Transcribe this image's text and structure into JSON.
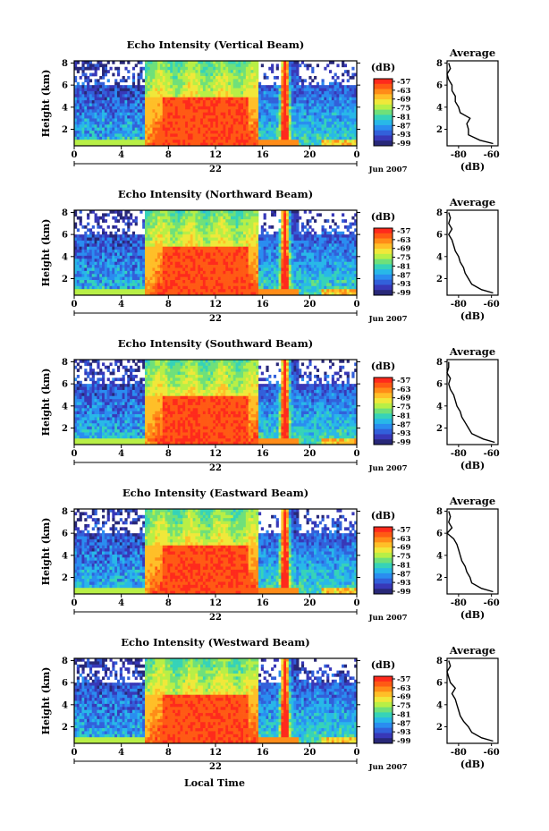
{
  "figure": {
    "xlabel": "Local Time",
    "date_label": "Jun 2007",
    "day_label": "22",
    "colorbar_unit": "(dB)",
    "avg_title": "Average",
    "avg_xlabel": "(dB)",
    "ylabel": "Height (km)"
  },
  "colorbar": {
    "ticks": [
      "-57",
      "-63",
      "-69",
      "-75",
      "-81",
      "-87",
      "-93",
      "-99"
    ],
    "colors": [
      "#ff2a1c",
      "#ff5a14",
      "#ff8c18",
      "#ffbf28",
      "#f0e83a",
      "#b8ef46",
      "#6fe07a",
      "#36d3b8",
      "#28b8e8",
      "#2a8df0",
      "#3260da",
      "#3838b8",
      "#282878"
    ]
  },
  "chart_data": [
    {
      "type": "heatmap",
      "title": "Echo Intensity (Vertical Beam)",
      "xlabel": "Local Time",
      "ylabel": "Height (km)",
      "x_ticks": [
        "0",
        "4",
        "8",
        "12",
        "16",
        "20",
        "0"
      ],
      "xlim": [
        0,
        24
      ],
      "y_ticks": [
        "2",
        "4",
        "6",
        "8"
      ],
      "ylim": [
        0.5,
        8.2
      ],
      "colorbar_ticks": [
        -57,
        -63,
        -69,
        -75,
        -81,
        -87,
        -93,
        -99
      ],
      "average": {
        "title": "Average",
        "xlabel": "(dB)",
        "x_ticks": [
          "-80",
          "-60"
        ],
        "xlim": [
          -87,
          -56
        ],
        "height": [
          0.7,
          1.0,
          1.5,
          2.0,
          2.5,
          3.0,
          3.5,
          4.0,
          4.5,
          5.0,
          5.5,
          6.0,
          6.5,
          7.0,
          7.5,
          8.0
        ],
        "value": [
          -59,
          -67,
          -74,
          -74,
          -75,
          -73,
          -79,
          -80,
          -82,
          -82,
          -84,
          -84,
          -86,
          -87,
          -85,
          -86
        ]
      }
    },
    {
      "type": "heatmap",
      "title": "Echo Intensity (Northward Beam)",
      "xlabel": "Local Time",
      "ylabel": "Height (km)",
      "x_ticks": [
        "0",
        "4",
        "8",
        "12",
        "16",
        "20",
        "0"
      ],
      "xlim": [
        0,
        24
      ],
      "y_ticks": [
        "2",
        "4",
        "6",
        "8"
      ],
      "ylim": [
        0.5,
        8.2
      ],
      "colorbar_ticks": [
        -57,
        -63,
        -69,
        -75,
        -81,
        -87,
        -93,
        -99
      ],
      "average": {
        "title": "Average",
        "xlabel": "(dB)",
        "x_ticks": [
          "-80",
          "-60"
        ],
        "xlim": [
          -87,
          -56
        ],
        "height": [
          0.7,
          1.0,
          1.5,
          2.0,
          2.5,
          3.0,
          3.5,
          4.0,
          4.5,
          5.0,
          5.5,
          6.0,
          6.5,
          7.0,
          7.5,
          8.0
        ],
        "value": [
          -59,
          -66,
          -72,
          -74,
          -76,
          -77,
          -79,
          -80,
          -82,
          -83,
          -84,
          -86,
          -84,
          -86,
          -85,
          -86
        ]
      }
    },
    {
      "type": "heatmap",
      "title": "Echo Intensity (Southward Beam)",
      "xlabel": "Local Time",
      "ylabel": "Height (km)",
      "x_ticks": [
        "0",
        "4",
        "8",
        "12",
        "16",
        "20",
        "0"
      ],
      "xlim": [
        0,
        24
      ],
      "y_ticks": [
        "2",
        "4",
        "6",
        "8"
      ],
      "ylim": [
        0.5,
        8.2
      ],
      "colorbar_ticks": [
        -57,
        -63,
        -69,
        -75,
        -81,
        -87,
        -93,
        -99
      ],
      "average": {
        "title": "Average",
        "xlabel": "(dB)",
        "x_ticks": [
          "-80",
          "-60"
        ],
        "xlim": [
          -87,
          -56
        ],
        "height": [
          0.7,
          1.0,
          1.5,
          2.0,
          2.5,
          3.0,
          3.5,
          4.0,
          4.5,
          5.0,
          5.5,
          6.0,
          6.5,
          7.0,
          7.5,
          8.0
        ],
        "value": [
          -58,
          -65,
          -72,
          -74,
          -76,
          -78,
          -79,
          -81,
          -82,
          -83,
          -85,
          -86,
          -85,
          -87,
          -86,
          -86
        ]
      }
    },
    {
      "type": "heatmap",
      "title": "Echo Intensity (Eastward Beam)",
      "xlabel": "Local Time",
      "ylabel": "Height (km)",
      "x_ticks": [
        "0",
        "4",
        "8",
        "12",
        "16",
        "20",
        "0"
      ],
      "xlim": [
        0,
        24
      ],
      "y_ticks": [
        "2",
        "4",
        "6",
        "8"
      ],
      "ylim": [
        0.5,
        8.2
      ],
      "colorbar_ticks": [
        -57,
        -63,
        -69,
        -75,
        -81,
        -87,
        -93,
        -99
      ],
      "average": {
        "title": "Average",
        "xlabel": "(dB)",
        "x_ticks": [
          "-80",
          "-60"
        ],
        "xlim": [
          -87,
          -56
        ],
        "height": [
          0.7,
          1.0,
          1.5,
          2.0,
          2.5,
          3.0,
          3.5,
          4.0,
          4.5,
          5.0,
          5.5,
          6.0,
          6.5,
          7.0,
          7.5,
          8.0
        ],
        "value": [
          -59,
          -66,
          -72,
          -73,
          -75,
          -76,
          -78,
          -79,
          -80,
          -81,
          -83,
          -87,
          -84,
          -86,
          -85,
          -86
        ]
      }
    },
    {
      "type": "heatmap",
      "title": "Echo Intensity (Westward Beam)",
      "xlabel": "Local Time",
      "ylabel": "Height (km)",
      "x_ticks": [
        "0",
        "4",
        "8",
        "12",
        "16",
        "20",
        "0"
      ],
      "xlim": [
        0,
        24
      ],
      "y_ticks": [
        "2",
        "4",
        "6",
        "8"
      ],
      "ylim": [
        0.5,
        8.2
      ],
      "colorbar_ticks": [
        -57,
        -63,
        -69,
        -75,
        -81,
        -87,
        -93,
        -99
      ],
      "average": {
        "title": "Average",
        "xlabel": "(dB)",
        "x_ticks": [
          "-80",
          "-60"
        ],
        "xlim": [
          -87,
          -56
        ],
        "height": [
          0.7,
          1.0,
          1.5,
          2.0,
          2.5,
          3.0,
          3.5,
          4.0,
          4.5,
          5.0,
          5.5,
          6.0,
          6.5,
          7.0,
          7.5,
          8.0
        ],
        "value": [
          -59,
          -66,
          -72,
          -74,
          -77,
          -79,
          -80,
          -81,
          -82,
          -84,
          -82,
          -85,
          -86,
          -87,
          -85,
          -86
        ]
      }
    }
  ]
}
